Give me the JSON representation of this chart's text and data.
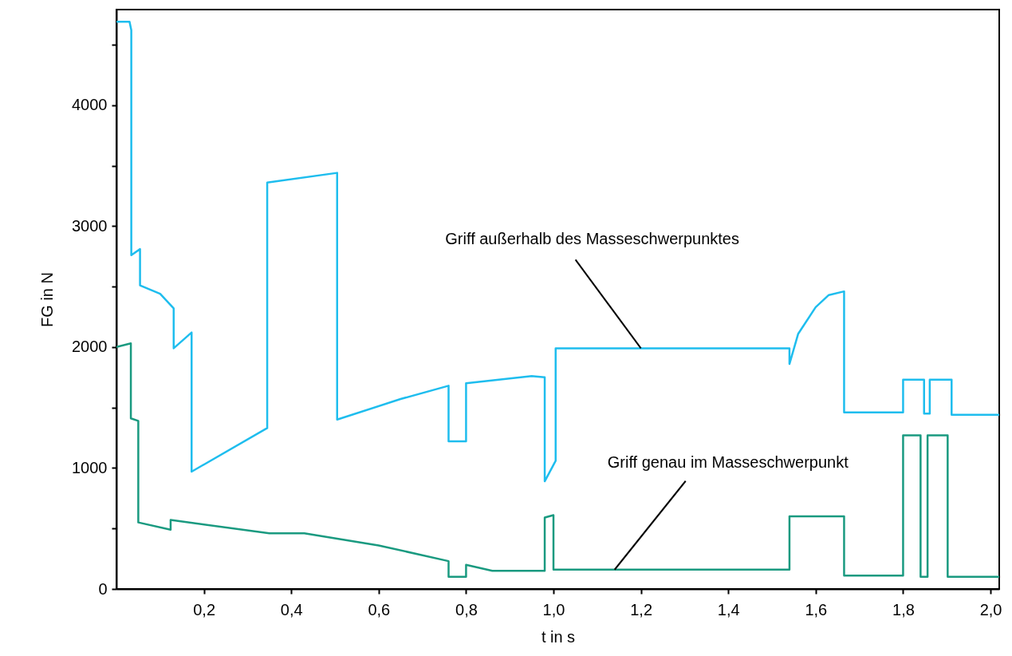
{
  "chart_data": {
    "type": "line",
    "xlabel": "t in s",
    "ylabel": "FG in N",
    "xlim": [
      0,
      2.02
    ],
    "ylim": [
      0,
      4790
    ],
    "xticks": [
      {
        "value": 0.2,
        "label": "0,2"
      },
      {
        "value": 0.4,
        "label": "0,4"
      },
      {
        "value": 0.6,
        "label": "0,6"
      },
      {
        "value": 0.8,
        "label": "0,8"
      },
      {
        "value": 1.0,
        "label": "1,0"
      },
      {
        "value": 1.2,
        "label": "1,2"
      },
      {
        "value": 1.4,
        "label": "1,4"
      },
      {
        "value": 1.6,
        "label": "1,6"
      },
      {
        "value": 1.8,
        "label": "1,8"
      },
      {
        "value": 2.0,
        "label": "2,0"
      }
    ],
    "yticks": [
      0,
      {
        "value": 500,
        "label": null
      },
      1000,
      {
        "value": 1500,
        "label": null
      },
      2000,
      {
        "value": 2500,
        "label": null
      },
      3000,
      {
        "value": 3500,
        "label": null
      },
      4000,
      {
        "value": 4500,
        "label": null
      }
    ],
    "grid": false,
    "marker": "none",
    "line_style": "solid",
    "series": [
      {
        "color": "#1ebdee",
        "x": [
          0,
          0.03,
          0.034,
          0.034,
          0.054,
          0.054,
          0.1,
          0.131,
          0.131,
          0.172,
          0.172,
          0.345,
          0.345,
          0.505,
          0.505,
          0.65,
          0.76,
          0.76,
          0.8,
          0.8,
          0.95,
          0.98,
          0.98,
          1.005,
          1.005,
          1.54,
          1.54,
          1.56,
          1.6,
          1.63,
          1.665,
          1.665,
          1.8,
          1.8,
          1.848,
          1.848,
          1.861,
          1.861,
          1.911,
          1.911,
          2.02
        ],
        "values": [
          4690,
          4690,
          4620,
          2760,
          2810,
          2510,
          2440,
          2320,
          1990,
          2120,
          970,
          1330,
          3360,
          3440,
          1400,
          1570,
          1680,
          1220,
          1220,
          1700,
          1760,
          1750,
          890,
          1060,
          1990,
          1990,
          1860,
          2110,
          2330,
          2430,
          2460,
          1460,
          1460,
          1730,
          1730,
          1450,
          1450,
          1730,
          1730,
          1440,
          1440
        ]
      },
      {
        "color": "#1a9a80",
        "x": [
          0,
          0.033,
          0.033,
          0.05,
          0.05,
          0.124,
          0.124,
          0.35,
          0.43,
          0.6,
          0.76,
          0.76,
          0.8,
          0.8,
          0.86,
          0.98,
          0.98,
          1.0,
          1.0,
          1.54,
          1.54,
          1.665,
          1.665,
          1.8,
          1.8,
          1.84,
          1.84,
          1.856,
          1.856,
          1.902,
          1.902,
          2.02
        ],
        "values": [
          2000,
          2030,
          1410,
          1390,
          550,
          490,
          570,
          460,
          460,
          360,
          230,
          100,
          100,
          200,
          150,
          150,
          590,
          610,
          160,
          160,
          600,
          600,
          110,
          110,
          1270,
          1270,
          100,
          100,
          1270,
          1270,
          100,
          100
        ]
      }
    ],
    "annotations": [
      {
        "text": "Griff außerhalb des Masseschwerpunktes",
        "x": 1.2,
        "y": 1990
      },
      {
        "text": "Griff genau im Masseschwerpunkt",
        "x": 1.14,
        "y": 160
      }
    ]
  }
}
